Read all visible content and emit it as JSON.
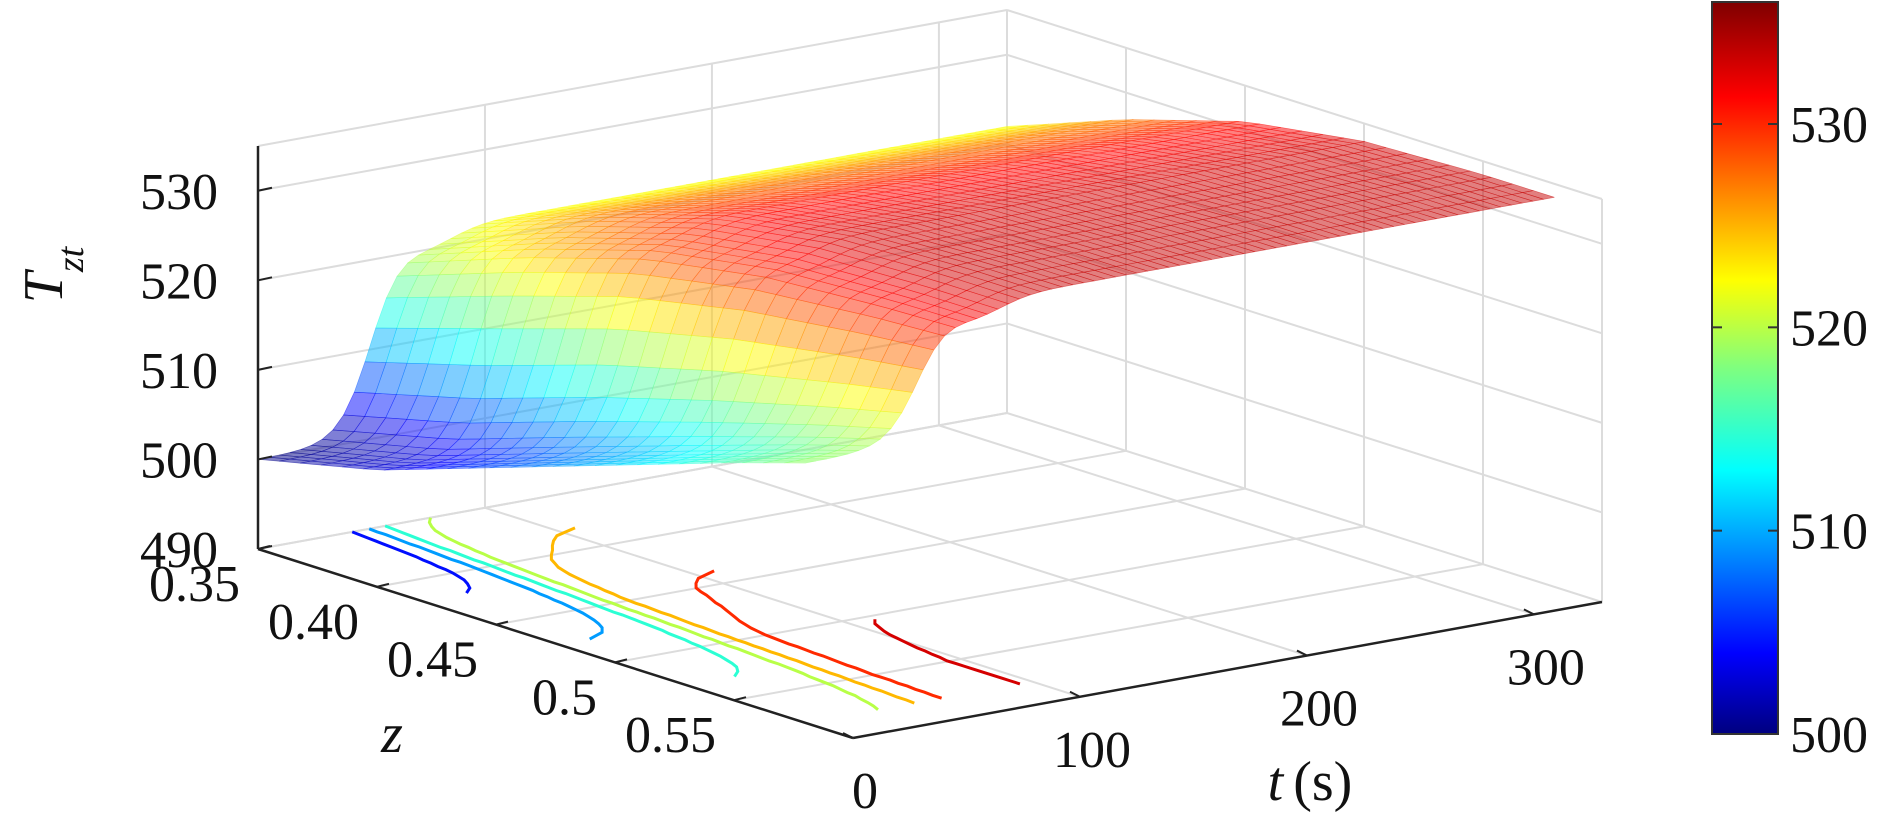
{
  "chart_data": {
    "type": "surface3d",
    "title": "",
    "xlabel": "z",
    "ylabel_var": "t",
    "ylabel_unit": "(s)",
    "zlabel_main": "T",
    "zlabel_sub": "zt",
    "x_axis": {
      "range": [
        0.35,
        0.6
      ],
      "ticks": [
        "0.35",
        "0.40",
        "0.45",
        "0.5",
        "0.55"
      ]
    },
    "y_axis": {
      "range": [
        0,
        330
      ],
      "ticks": [
        "0",
        "100",
        "200",
        "300"
      ]
    },
    "z_axis": {
      "range": [
        490,
        535
      ],
      "ticks": [
        "490",
        "500",
        "510",
        "520",
        "530"
      ]
    },
    "colorbar": {
      "range": [
        500,
        536
      ],
      "ticks": [
        "500",
        "510",
        "520",
        "530"
      ],
      "colormap": "jet"
    },
    "grid": true,
    "surface_profile_initial_t0": {
      "z": [
        0.35,
        0.4,
        0.45,
        0.5,
        0.55,
        0.58
      ],
      "T": [
        500.0,
        503.0,
        507.5,
        512.0,
        516.5,
        519.0
      ]
    },
    "surface_profile_steady": {
      "z": [
        0.35,
        0.4,
        0.45,
        0.5,
        0.55,
        0.58
      ],
      "T": [
        522.0,
        527.0,
        531.0,
        533.0,
        533.5,
        533.5
      ]
    },
    "transition_time_s": 50,
    "contour_levels": [
      500,
      505,
      510,
      515,
      520,
      525,
      530,
      533
    ],
    "colors": {
      "surface_low": "#7b7cf0",
      "surface_high": "#f58a86",
      "colorbar_low": "#00007f",
      "colorbar_high": "#7f0000"
    }
  },
  "tick_colors": {
    "axis": "#222222",
    "grid": "#dcdcdc"
  }
}
